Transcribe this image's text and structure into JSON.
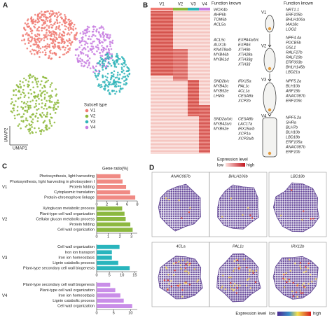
{
  "panel_a": {
    "label": "A",
    "y_axis": "UMAP2",
    "x_axis": "UMAP1",
    "legend_title": "Subcell type",
    "legend": [
      {
        "name": "V1",
        "color": "#f07b73"
      },
      {
        "name": "V2",
        "color": "#8db83a"
      },
      {
        "name": "V3",
        "color": "#2fb4b8"
      },
      {
        "name": "V4",
        "color": "#c77ce0"
      }
    ]
  },
  "panel_b": {
    "label": "B",
    "columns": [
      {
        "name": "V1",
        "color": "#f07b73"
      },
      {
        "name": "V2",
        "color": "#8db83a"
      },
      {
        "name": "V3",
        "color": "#2fb4b8"
      },
      {
        "name": "V4",
        "color": "#c77ce0"
      }
    ],
    "header_left": "Function known",
    "header_right": "Function known",
    "gene_groups": [
      {
        "left": [
          "WOX4b",
          "AHP6b",
          "TOM6b",
          "ACL5a"
        ],
        "right": [
          "NRT1.1",
          "ERF105b",
          "BHLH106a",
          "IAA18c",
          "LOG2"
        ]
      },
      {
        "left": [
          "ACL5c",
          "AUX1b",
          "KNAT8a/b",
          "MYB46b",
          "MYB61d"
        ],
        "middle": [
          "EXPA4a/b/c",
          "EXPA6",
          "XTH9b",
          "XTH28a",
          "XTH33g",
          "XTH33"
        ],
        "right": [
          "NPF4.4a",
          "PDCB5b",
          "GSL1",
          "RALF27b",
          "RALF19b",
          "ERF003b",
          "BHLH145b",
          "LBD21a"
        ]
      },
      {
        "left": [
          "SND2b/c",
          "MYB42c",
          "MYB52e",
          "LHWa"
        ],
        "middle": [
          "IRX15a",
          "PAL1c",
          "4CL1a",
          "CESA8a",
          "XCP2b"
        ],
        "right": [
          "NPF5.2a",
          "BLH10b",
          "ARF19b",
          "ANAC087b",
          "ERF109c"
        ]
      },
      {
        "left": [
          "SND2a/b/c",
          "MYB42a/c",
          "MYB52e"
        ],
        "middle": [
          "CESA8b",
          "LAC17a",
          "IRX15a/b",
          "XCP1a",
          "XCP2a/b"
        ],
        "right": [
          "NPF5.2a",
          "SHRa",
          "BLH7b",
          "BLH10b",
          "LBD18b",
          "ERF105a",
          "ANAC087b",
          "ERF10b"
        ]
      }
    ],
    "cells": [
      "V1",
      "V2",
      "V3",
      "V4"
    ],
    "legend_title": "Expression level",
    "legend_low": "low",
    "legend_high": "high"
  },
  "chart_data": {
    "type": "bar",
    "label": "C",
    "axis_label": "Gene ratio(%)",
    "groups": [
      {
        "name": "V1",
        "color": "#f08a84",
        "xlim": [
          0,
          8
        ],
        "xticks": [
          0,
          2,
          4,
          6,
          8
        ],
        "categories": [
          "Photosynthesis, light harvesting",
          "Photosynthesis, light harvesting in photosystem I",
          "Protein folding",
          "Cytoplasmic translation",
          "Protein-chromophore linkage"
        ],
        "values": [
          4.7,
          5.1,
          5.8,
          6.6,
          7.6
        ]
      },
      {
        "name": "V2",
        "color": "#8cb840",
        "xlim": [
          0,
          3.5
        ],
        "xticks": [
          0,
          1,
          2,
          3
        ],
        "categories": [
          "Xyloglucan metabolic process",
          "Plant-type cell wall organization",
          "Cellular glucan metabolic process",
          "Protein folding",
          "Cell wall organization"
        ],
        "values": [
          2.2,
          2.4,
          2.5,
          2.9,
          3.1
        ]
      },
      {
        "name": "V3",
        "color": "#29b5bd",
        "xlim": [
          0,
          16
        ],
        "xticks": [
          0,
          5,
          10,
          15
        ],
        "categories": [
          "Cell wall organization",
          "Iron ion transport",
          "Iron ion homeostasis",
          "Lignin catabolic process",
          "Plant-type secondary cell wall biogenesis"
        ],
        "values": [
          9,
          6,
          6,
          8.5,
          13
        ]
      },
      {
        "name": "V4",
        "color": "#c98ee8",
        "xlim": [
          0,
          12
        ],
        "xticks": [
          0,
          5,
          10
        ],
        "categories": [
          "Plant-type secondary cell wall biogenesis",
          "Plant-type cell wall organization",
          "Iron ion homeostasis",
          "Lignin catabolic process",
          "Cell wall organization"
        ],
        "values": [
          4,
          5.5,
          7,
          8,
          10.5
        ]
      }
    ]
  },
  "panel_d": {
    "label": "D",
    "maps": [
      "ANAC087b",
      "BHLH106b",
      "LBD18b",
      "4CLa",
      "PAL1c",
      "IRX12b"
    ],
    "legend_title": "Expression level",
    "legend_low": "low",
    "legend_high": "high"
  }
}
